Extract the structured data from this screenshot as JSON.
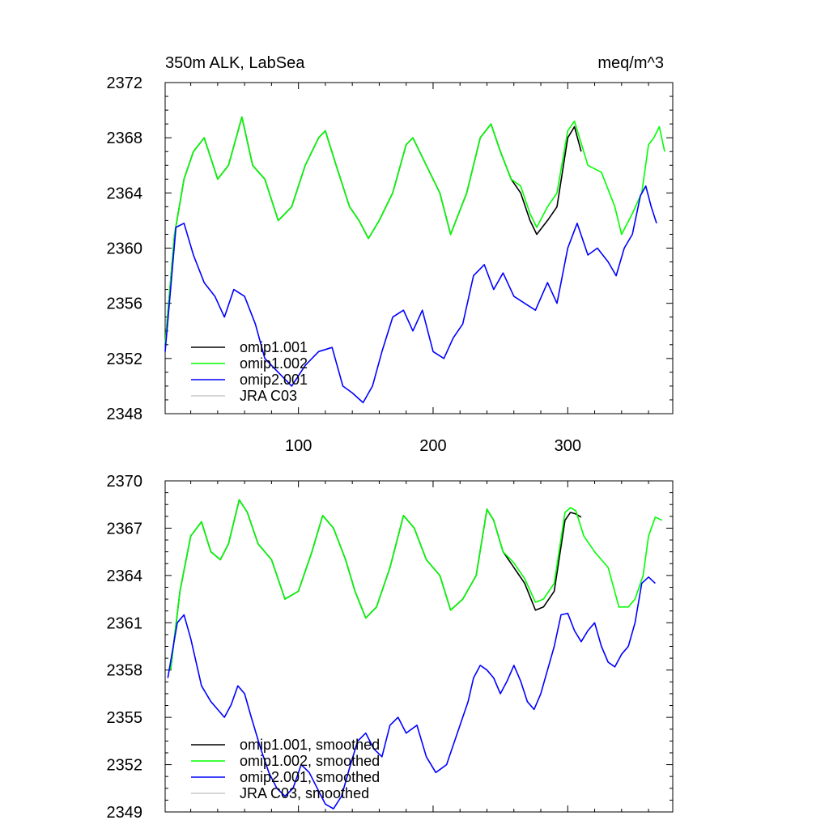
{
  "chart_data": [
    {
      "type": "line",
      "title": "350m ALK, LabSea",
      "units": "meq/m^3",
      "xlim": [
        1,
        378
      ],
      "ylim": [
        2348,
        2372
      ],
      "xticks": [
        100,
        200,
        300
      ],
      "xtick_labels": [
        "100",
        "200",
        "300"
      ],
      "yticks": [
        2348,
        2352,
        2356,
        2360,
        2364,
        2368,
        2372
      ],
      "ytick_labels": [
        "2348",
        "2352",
        "2356",
        "2360",
        "2364",
        "2368",
        "2372"
      ],
      "legend_position": "bottom-left",
      "series": [
        {
          "name": "omip1.001",
          "color": "#000000",
          "x": [
            1,
            8,
            15,
            22,
            30,
            40,
            48,
            58,
            66,
            75,
            85,
            95,
            105,
            115,
            120,
            128,
            138,
            145,
            152,
            160,
            170,
            180,
            185,
            195,
            205,
            213,
            225,
            235,
            243,
            250,
            258,
            265,
            272,
            277,
            285,
            292,
            300,
            305,
            310
          ],
          "values": [
            2353,
            2361,
            2365,
            2367,
            2368,
            2365,
            2366,
            2369.5,
            2366,
            2365,
            2362,
            2363,
            2366,
            2368,
            2368.5,
            2366,
            2363,
            2362,
            2360.7,
            2362,
            2364,
            2367.5,
            2368,
            2366,
            2364,
            2361,
            2364,
            2368,
            2369,
            2367,
            2365,
            2364,
            2362,
            2361,
            2362,
            2363,
            2368,
            2368.8,
            2367
          ]
        },
        {
          "name": "omip1.002",
          "color": "#00ff00",
          "x": [
            1,
            8,
            15,
            22,
            30,
            40,
            48,
            58,
            66,
            75,
            85,
            95,
            105,
            115,
            120,
            128,
            138,
            145,
            152,
            160,
            170,
            180,
            185,
            195,
            205,
            213,
            225,
            235,
            243,
            250,
            258,
            265,
            272,
            277,
            285,
            292,
            300,
            305,
            315,
            325,
            335,
            340,
            348,
            355,
            360,
            364,
            368,
            372
          ],
          "values": [
            2353,
            2361,
            2365,
            2367,
            2368,
            2365,
            2366,
            2369.5,
            2366,
            2365,
            2362,
            2363,
            2366,
            2368,
            2368.5,
            2366,
            2363,
            2362,
            2360.7,
            2362,
            2364,
            2367.5,
            2368,
            2366,
            2364,
            2361,
            2364,
            2368,
            2369,
            2367,
            2365,
            2364.5,
            2362.5,
            2361.5,
            2363,
            2364,
            2368.5,
            2369.2,
            2366,
            2365.5,
            2363,
            2361,
            2362.5,
            2364,
            2367.5,
            2368,
            2368.8,
            2367
          ]
        },
        {
          "name": "omip2.001",
          "color": "#0000ff",
          "x": [
            1,
            5,
            9,
            15,
            22,
            30,
            38,
            45,
            52,
            60,
            68,
            75,
            85,
            95,
            105,
            115,
            125,
            133,
            140,
            148,
            155,
            162,
            170,
            178,
            185,
            192,
            200,
            208,
            215,
            222,
            230,
            238,
            245,
            252,
            260,
            268,
            276,
            285,
            292,
            300,
            307,
            315,
            322,
            330,
            336,
            342,
            348,
            354,
            358,
            362,
            366
          ],
          "values": [
            2352.5,
            2357,
            2361.5,
            2361.8,
            2359.5,
            2357.5,
            2356.5,
            2355,
            2357,
            2356.5,
            2354.5,
            2352,
            2351,
            2350,
            2351.5,
            2352.5,
            2352.8,
            2350,
            2349.5,
            2348.8,
            2350,
            2352.5,
            2355,
            2355.5,
            2354,
            2355.5,
            2352.5,
            2352,
            2353.5,
            2354.5,
            2358,
            2358.8,
            2357,
            2358.2,
            2356.5,
            2356,
            2355.5,
            2357.5,
            2356,
            2360,
            2361.8,
            2359.5,
            2360,
            2359,
            2358,
            2360,
            2361,
            2363.8,
            2364.5,
            2363,
            2361.8
          ]
        },
        {
          "name": "JRA C03",
          "color": "#c8c8c8",
          "x": [],
          "values": []
        }
      ]
    },
    {
      "type": "line",
      "xlim": [
        1,
        378
      ],
      "ylim": [
        2349,
        2370
      ],
      "xticks": [
        100,
        200,
        300
      ],
      "yticks": [
        2349,
        2352,
        2355,
        2358,
        2361,
        2364,
        2367,
        2370
      ],
      "ytick_labels": [
        "2349",
        "2352",
        "2355",
        "2358",
        "2361",
        "2364",
        "2367",
        "2370"
      ],
      "legend_position": "bottom-left",
      "series": [
        {
          "name": "omip1.001, smoothed",
          "color": "#000000",
          "x": [
            5,
            12,
            20,
            28,
            35,
            42,
            48,
            56,
            62,
            70,
            80,
            90,
            100,
            110,
            118,
            126,
            135,
            142,
            150,
            158,
            168,
            178,
            186,
            195,
            205,
            213,
            222,
            232,
            240,
            245,
            252,
            260,
            268,
            276,
            282,
            290,
            298,
            302,
            306,
            310
          ],
          "values": [
            2358,
            2363,
            2366.5,
            2367.4,
            2365.5,
            2365,
            2366,
            2368.8,
            2368,
            2366,
            2365,
            2362.5,
            2363,
            2365.5,
            2367.8,
            2367,
            2365,
            2363,
            2361.3,
            2362,
            2364.5,
            2367.8,
            2367,
            2365,
            2364,
            2361.8,
            2362.5,
            2364,
            2368.2,
            2367.5,
            2365.5,
            2364.5,
            2363.5,
            2361.8,
            2362,
            2363,
            2367.5,
            2368,
            2367.9,
            2367.7
          ]
        },
        {
          "name": "omip1.002, smoothed",
          "color": "#00ff00",
          "x": [
            5,
            12,
            20,
            28,
            35,
            42,
            48,
            56,
            62,
            70,
            80,
            90,
            100,
            110,
            118,
            126,
            135,
            142,
            150,
            158,
            168,
            178,
            186,
            195,
            205,
            213,
            222,
            232,
            240,
            245,
            252,
            260,
            268,
            276,
            282,
            290,
            298,
            302,
            306,
            312,
            320,
            330,
            338,
            345,
            350,
            356,
            360,
            365,
            370
          ],
          "values": [
            2358,
            2363,
            2366.5,
            2367.4,
            2365.5,
            2365,
            2366,
            2368.8,
            2368,
            2366,
            2365,
            2362.5,
            2363,
            2365.5,
            2367.8,
            2367,
            2365,
            2363,
            2361.3,
            2362,
            2364.5,
            2367.8,
            2367,
            2365,
            2364,
            2361.8,
            2362.5,
            2364,
            2368.2,
            2367.5,
            2365.5,
            2364.8,
            2363.8,
            2362.3,
            2362.5,
            2363.5,
            2368,
            2368.3,
            2368.1,
            2366.5,
            2365.5,
            2364.5,
            2362,
            2362,
            2362.5,
            2364,
            2366.5,
            2367.7,
            2367.5
          ]
        },
        {
          "name": "omip2.001, smoothed",
          "color": "#0000ff",
          "x": [
            3,
            6,
            10,
            15,
            20,
            28,
            35,
            40,
            45,
            50,
            55,
            60,
            65,
            72,
            78,
            84,
            90,
            96,
            102,
            108,
            114,
            120,
            126,
            132,
            138,
            144,
            150,
            156,
            162,
            168,
            174,
            180,
            188,
            195,
            202,
            210,
            218,
            226,
            230,
            235,
            240,
            245,
            250,
            255,
            260,
            265,
            270,
            275,
            280,
            285,
            290,
            295,
            300,
            305,
            310,
            315,
            320,
            325,
            330,
            335,
            340,
            345,
            350,
            355,
            360,
            365
          ],
          "values": [
            2357.5,
            2359,
            2361,
            2361.5,
            2360,
            2357,
            2356,
            2355.5,
            2355,
            2355.8,
            2357,
            2356.5,
            2355,
            2353,
            2351.5,
            2350.5,
            2350,
            2350.5,
            2352,
            2351.5,
            2350.5,
            2349.5,
            2349.2,
            2350,
            2351.8,
            2353.5,
            2354,
            2353,
            2352.5,
            2354.5,
            2355,
            2354,
            2354.5,
            2352.5,
            2351.5,
            2352,
            2354,
            2356,
            2357.5,
            2358.3,
            2358,
            2357.5,
            2356.5,
            2357.3,
            2358.3,
            2357.3,
            2356,
            2355.5,
            2356.5,
            2358,
            2359.5,
            2361.5,
            2361.6,
            2360.5,
            2359.8,
            2360.5,
            2361,
            2359.5,
            2358.5,
            2358.2,
            2359,
            2359.5,
            2361,
            2363.5,
            2363.9,
            2363.5
          ]
        },
        {
          "name": "JRA C03, smoothed",
          "color": "#c8c8c8",
          "x": [],
          "values": []
        }
      ]
    }
  ]
}
